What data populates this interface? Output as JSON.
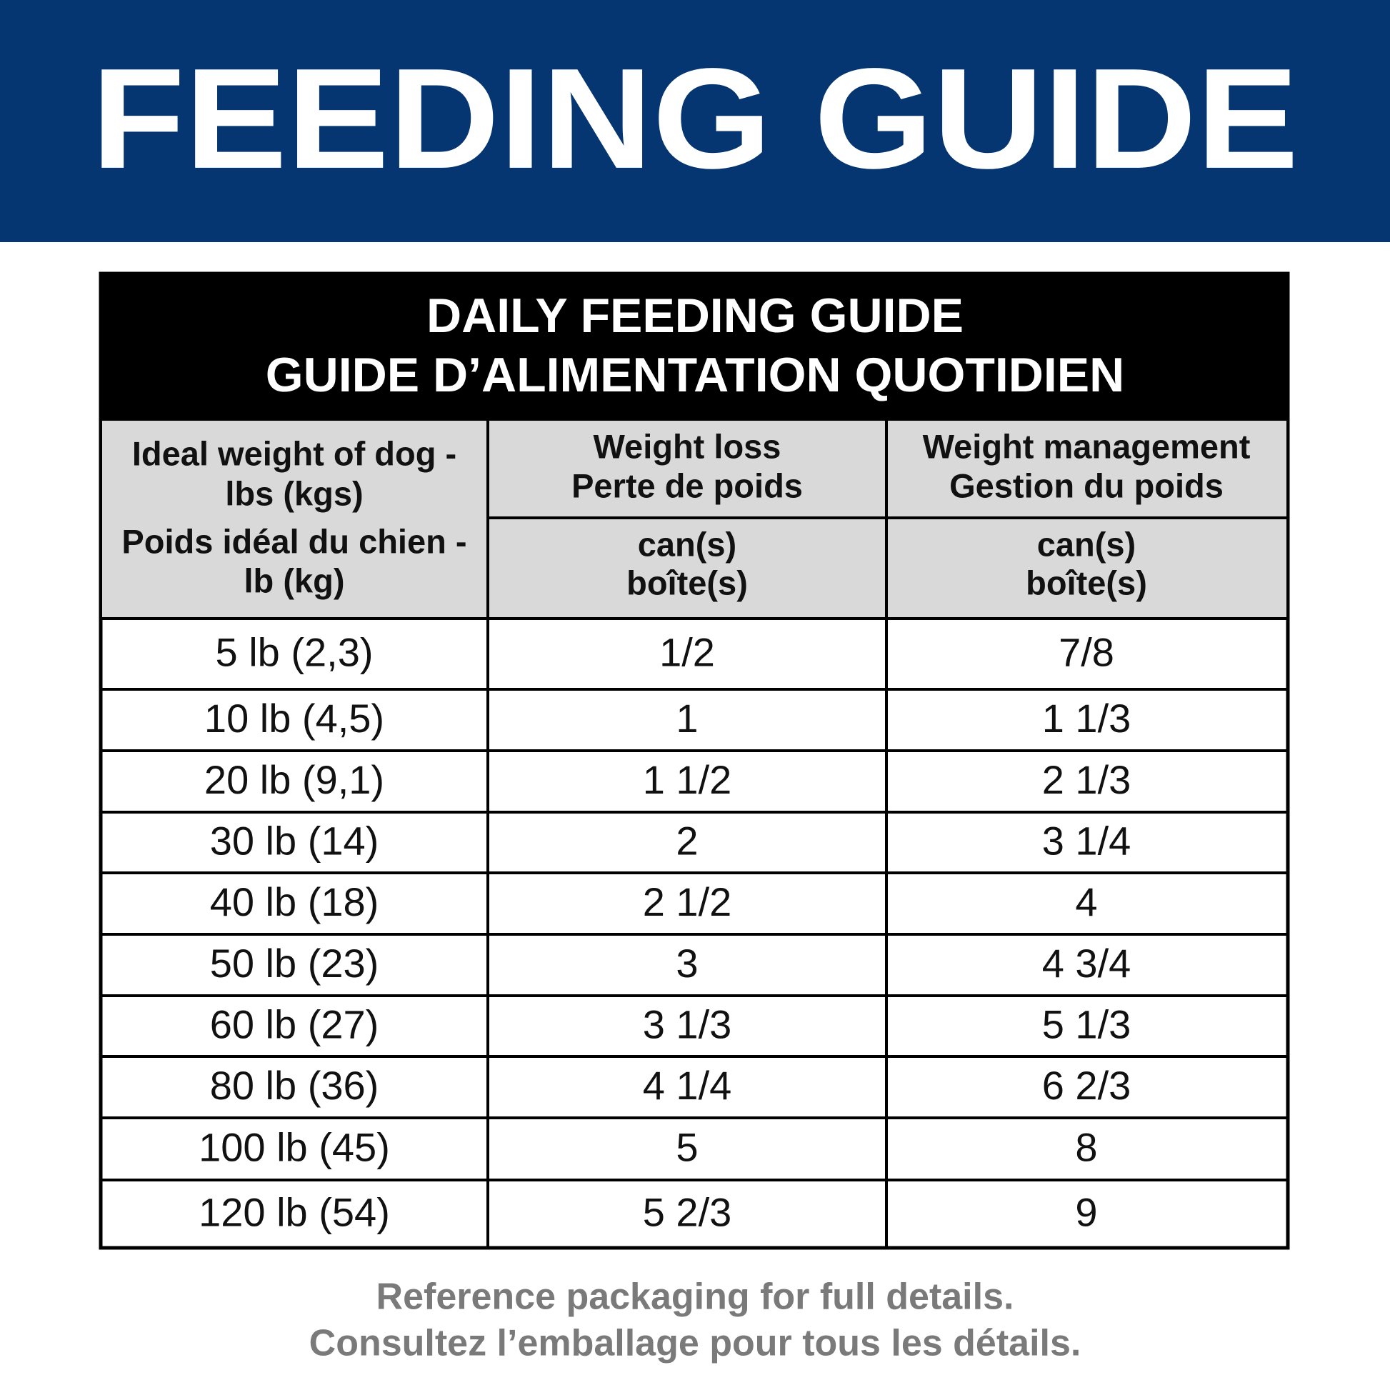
{
  "header": {
    "title": "FEEDING GUIDE"
  },
  "table": {
    "title": [
      "DAILY FEEDING GUIDE",
      "GUIDE D’ALIMENTATION QUOTIDIEN"
    ],
    "columns": [
      {
        "heading": [
          "Ideal weight of dog -",
          "lbs (kgs)",
          "Poids idéal du chien -",
          "lb (kg)"
        ]
      },
      {
        "heading": [
          "Weight loss",
          "Perte de poids"
        ],
        "unit": [
          "can(s)",
          "boîte(s)"
        ]
      },
      {
        "heading": [
          "Weight management",
          "Gestion du poids"
        ],
        "unit": [
          "can(s)",
          "boîte(s)"
        ]
      }
    ],
    "rows": [
      [
        "5 lb (2,3)",
        "1/2",
        "7/8"
      ],
      [
        "10 lb (4,5)",
        "1",
        "1 1/3"
      ],
      [
        "20 lb (9,1)",
        "1 1/2",
        "2 1/3"
      ],
      [
        "30 lb (14)",
        "2",
        "3 1/4"
      ],
      [
        "40 lb (18)",
        "2 1/2",
        "4"
      ],
      [
        "50 lb (23)",
        "3",
        "4 3/4"
      ],
      [
        "60 lb (27)",
        "3 1/3",
        "5 1/3"
      ],
      [
        "80 lb (36)",
        "4 1/4",
        "6 2/3"
      ],
      [
        "100 lb (45)",
        "5",
        "8"
      ],
      [
        "120 lb (54)",
        "5 2/3",
        "9"
      ]
    ]
  },
  "footer": [
    "Reference packaging for full details.",
    "Consultez l’emballage pour tous les détails."
  ]
}
